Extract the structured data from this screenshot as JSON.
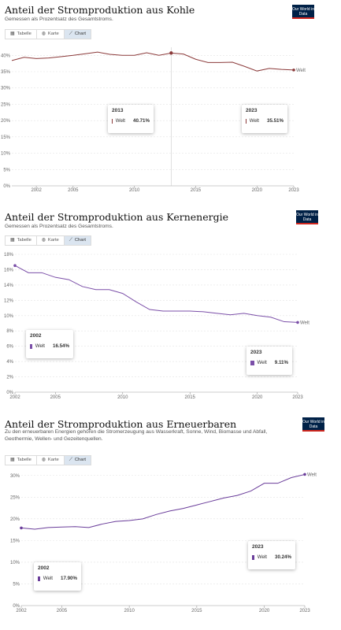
{
  "logo_text": "Our World in Data",
  "logo_colors": {
    "bg": "#002147",
    "accent": "#ce261e"
  },
  "tabs": {
    "table": "Tabelle",
    "map": "Karte",
    "chart": "Chart"
  },
  "icons": {
    "table": "table-icon",
    "map": "globe-icon",
    "chart": "line-chart-icon"
  },
  "charts": [
    {
      "title": "Anteil der Stromproduktion aus Kohle",
      "subtitle": "Gemessen als Prozentsatz des Gesamtstroms.",
      "tip_left": {
        "year": "2013",
        "label": "Welt",
        "value": "40.71%"
      },
      "tip_right": {
        "year": "2023",
        "label": "Welt",
        "value": "35.51%"
      },
      "end_label": "Welt",
      "color": "#8b3a3a"
    },
    {
      "title": "Anteil der Stromproduktion aus Kernenergie",
      "subtitle": "Gemessen als Prozentsatz des Gesamtstroms.",
      "tip_left": {
        "year": "2002",
        "label": "Welt",
        "value": "16.54%"
      },
      "tip_right": {
        "year": "2023",
        "label": "Welt",
        "value": "9.11%"
      },
      "end_label": "Welt",
      "color": "#7b4fa8"
    },
    {
      "title": "Anteil der Stromproduktion aus Erneuerbaren",
      "subtitle": "Zu den erneuerbaren Energien gehören die Stromerzeugung aus Wasserkraft, Sonne, Wind, Biomasse und Abfall, Geothermie, Wellen- und Gezeitenquellen.",
      "tip_left": {
        "year": "2002",
        "label": "Welt",
        "value": "17.90%"
      },
      "tip_right": {
        "year": "2023",
        "label": "Welt",
        "value": "30.24%"
      },
      "end_label": "Welt",
      "color": "#6a3d9a"
    }
  ],
  "chart_data": [
    {
      "type": "line",
      "title": "Anteil der Stromproduktion aus Kohle",
      "x": [
        2000,
        2001,
        2002,
        2003,
        2004,
        2005,
        2006,
        2007,
        2008,
        2009,
        2010,
        2011,
        2012,
        2013,
        2014,
        2015,
        2016,
        2017,
        2018,
        2019,
        2020,
        2021,
        2022,
        2023
      ],
      "series": [
        {
          "name": "Welt",
          "values": [
            38.4,
            39.4,
            39.0,
            39.2,
            39.6,
            40.0,
            40.5,
            41.0,
            40.3,
            40.0,
            40.0,
            40.8,
            40.0,
            40.71,
            40.4,
            38.8,
            37.8,
            37.8,
            37.9,
            36.6,
            35.2,
            36.0,
            35.7,
            35.51
          ]
        }
      ],
      "xticks": [
        2002,
        2005,
        2010,
        2015,
        2020,
        2023
      ],
      "yticks": [
        "0%",
        "5%",
        "10%",
        "15%",
        "20%",
        "25%",
        "30%",
        "35%",
        "40%"
      ],
      "ylim": [
        0,
        42
      ],
      "highlight_x": 2013
    },
    {
      "type": "line",
      "title": "Anteil der Stromproduktion aus Kernenergie",
      "x": [
        2002,
        2003,
        2004,
        2005,
        2006,
        2007,
        2008,
        2009,
        2010,
        2011,
        2012,
        2013,
        2014,
        2015,
        2016,
        2017,
        2018,
        2019,
        2020,
        2021,
        2022,
        2023
      ],
      "series": [
        {
          "name": "Welt",
          "values": [
            16.54,
            15.6,
            15.6,
            15.0,
            14.7,
            13.8,
            13.4,
            13.4,
            12.9,
            11.8,
            10.8,
            10.6,
            10.6,
            10.6,
            10.5,
            10.3,
            10.1,
            10.3,
            10.0,
            9.8,
            9.2,
            9.11
          ]
        }
      ],
      "xticks": [
        2002,
        2005,
        2010,
        2015,
        2020,
        2023
      ],
      "yticks": [
        "0%",
        "2%",
        "4%",
        "6%",
        "8%",
        "10%",
        "12%",
        "14%",
        "16%",
        "18%"
      ],
      "ylim": [
        0,
        18
      ]
    },
    {
      "type": "line",
      "title": "Anteil der Stromproduktion aus Erneuerbaren",
      "x": [
        2002,
        2003,
        2004,
        2005,
        2006,
        2007,
        2008,
        2009,
        2010,
        2011,
        2012,
        2013,
        2014,
        2015,
        2016,
        2017,
        2018,
        2019,
        2020,
        2021,
        2022,
        2023
      ],
      "series": [
        {
          "name": "Welt",
          "values": [
            17.9,
            17.6,
            18.0,
            18.1,
            18.2,
            18.0,
            18.8,
            19.4,
            19.6,
            20.0,
            21.0,
            21.8,
            22.4,
            23.2,
            24.0,
            24.8,
            25.4,
            26.4,
            28.2,
            28.2,
            29.5,
            30.24
          ]
        }
      ],
      "xticks": [
        2002,
        2005,
        2010,
        2015,
        2020,
        2023
      ],
      "yticks": [
        "0%",
        "5%",
        "10%",
        "15%",
        "20%",
        "25%",
        "30%"
      ],
      "ylim": [
        0,
        30.5
      ]
    }
  ]
}
